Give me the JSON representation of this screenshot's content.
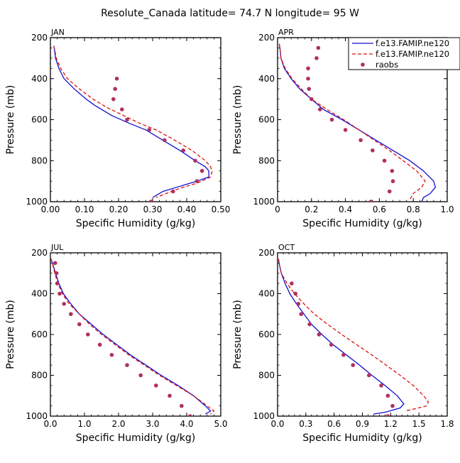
{
  "page_title": "Resolute_Canada   latitude= 74.7 N longitude= 95 W",
  "legend": {
    "entries": [
      {
        "label": "f.e13.FAMIP.ne120",
        "style": "solid",
        "color": "#1010d0"
      },
      {
        "label": "f.e13.FAMIP.ne120",
        "style": "dashed",
        "color": "#e01010"
      },
      {
        "label": "raobs",
        "style": "dot",
        "color": "#b03060"
      }
    ]
  },
  "colors": {
    "model_solid": "#1010d0",
    "model_dashed": "#e01010",
    "obs": "#b03060"
  },
  "chart_data": [
    {
      "type": "line",
      "panel": "JAN",
      "xlabel": "Specific Humidity (g/kg)",
      "ylabel": "Pressure (mb)",
      "xlim": [
        0,
        0.5
      ],
      "xticks": [
        0,
        0.1,
        0.2,
        0.3,
        0.4,
        0.5
      ],
      "xticklabels": [
        "0.00",
        "0.10",
        "0.20",
        "0.30",
        "0.40",
        "0.50"
      ],
      "ylim": [
        200,
        1000
      ],
      "yticks": [
        200,
        400,
        600,
        800,
        1000
      ],
      "yticklabels": [
        "200",
        "400",
        "600",
        "800",
        "1000"
      ],
      "y_reversed": true,
      "series": [
        {
          "style": "solid",
          "points": [
            [
              0.01,
              240
            ],
            [
              0.012,
              260
            ],
            [
              0.015,
              300
            ],
            [
              0.025,
              350
            ],
            [
              0.04,
              400
            ],
            [
              0.07,
              450
            ],
            [
              0.105,
              500
            ],
            [
              0.13,
              530
            ],
            [
              0.18,
              580
            ],
            [
              0.235,
              620
            ],
            [
              0.28,
              650
            ],
            [
              0.33,
              700
            ],
            [
              0.38,
              750
            ],
            [
              0.425,
              800
            ],
            [
              0.455,
              830
            ],
            [
              0.465,
              850
            ],
            [
              0.465,
              880
            ],
            [
              0.43,
              900
            ],
            [
              0.39,
              920
            ],
            [
              0.33,
              950
            ],
            [
              0.3,
              980
            ]
          ]
        },
        {
          "style": "dashed",
          "points": [
            [
              0.01,
              240
            ],
            [
              0.013,
              260
            ],
            [
              0.017,
              300
            ],
            [
              0.03,
              350
            ],
            [
              0.05,
              400
            ],
            [
              0.085,
              450
            ],
            [
              0.125,
              500
            ],
            [
              0.165,
              540
            ],
            [
              0.215,
              580
            ],
            [
              0.265,
              620
            ],
            [
              0.31,
              650
            ],
            [
              0.365,
              700
            ],
            [
              0.415,
              750
            ],
            [
              0.455,
              800
            ],
            [
              0.47,
              830
            ],
            [
              0.475,
              850
            ],
            [
              0.47,
              880
            ],
            [
              0.43,
              910
            ],
            [
              0.38,
              935
            ],
            [
              0.34,
              960
            ],
            [
              0.31,
              980
            ]
          ]
        },
        {
          "style": "dot",
          "points": [
            [
              0.195,
              400
            ],
            [
              0.19,
              450
            ],
            [
              0.185,
              500
            ],
            [
              0.21,
              550
            ],
            [
              0.225,
              600
            ],
            [
              0.29,
              650
            ],
            [
              0.335,
              700
            ],
            [
              0.39,
              750
            ],
            [
              0.425,
              800
            ],
            [
              0.445,
              850
            ],
            [
              0.43,
              900
            ],
            [
              0.36,
              950
            ],
            [
              0.295,
              1000
            ]
          ]
        }
      ]
    },
    {
      "type": "line",
      "panel": "APR",
      "xlabel": "Specific Humidity (g/kg)",
      "ylabel": "Pressure (mb)",
      "xlim": [
        0,
        1.0
      ],
      "xticks": [
        0,
        0.2,
        0.4,
        0.6,
        0.8,
        1.0
      ],
      "xticklabels": [
        "0",
        "0.2",
        "0.4",
        "0.6",
        "0.8",
        "1.0"
      ],
      "ylim": [
        200,
        1000
      ],
      "yticks": [
        200,
        400,
        600,
        800,
        1000
      ],
      "yticklabels": [
        "200",
        "400",
        "600",
        "800",
        "1000"
      ],
      "y_reversed": true,
      "series": [
        {
          "style": "solid",
          "points": [
            [
              0.01,
              230
            ],
            [
              0.015,
              260
            ],
            [
              0.02,
              300
            ],
            [
              0.04,
              350
            ],
            [
              0.08,
              400
            ],
            [
              0.13,
              450
            ],
            [
              0.2,
              500
            ],
            [
              0.27,
              550
            ],
            [
              0.38,
              600
            ],
            [
              0.48,
              650
            ],
            [
              0.58,
              700
            ],
            [
              0.68,
              750
            ],
            [
              0.78,
              800
            ],
            [
              0.86,
              850
            ],
            [
              0.92,
              900
            ],
            [
              0.93,
              930
            ],
            [
              0.9,
              960
            ],
            [
              0.86,
              980
            ],
            [
              0.85,
              1000
            ]
          ]
        },
        {
          "style": "dashed",
          "points": [
            [
              0.01,
              230
            ],
            [
              0.015,
              260
            ],
            [
              0.02,
              300
            ],
            [
              0.045,
              350
            ],
            [
              0.085,
              400
            ],
            [
              0.14,
              450
            ],
            [
              0.2,
              500
            ],
            [
              0.29,
              550
            ],
            [
              0.39,
              600
            ],
            [
              0.48,
              650
            ],
            [
              0.57,
              700
            ],
            [
              0.66,
              750
            ],
            [
              0.74,
              800
            ],
            [
              0.82,
              850
            ],
            [
              0.87,
              900
            ],
            [
              0.85,
              930
            ],
            [
              0.8,
              960
            ],
            [
              0.78,
              990
            ]
          ]
        },
        {
          "style": "dot",
          "points": [
            [
              0.24,
              250
            ],
            [
              0.23,
              300
            ],
            [
              0.18,
              350
            ],
            [
              0.18,
              400
            ],
            [
              0.185,
              450
            ],
            [
              0.2,
              500
            ],
            [
              0.25,
              550
            ],
            [
              0.32,
              600
            ],
            [
              0.4,
              650
            ],
            [
              0.49,
              700
            ],
            [
              0.56,
              750
            ],
            [
              0.63,
              800
            ],
            [
              0.675,
              850
            ],
            [
              0.68,
              900
            ],
            [
              0.66,
              950
            ],
            [
              0.55,
              1000
            ]
          ]
        }
      ]
    },
    {
      "type": "line",
      "panel": "JUL",
      "xlabel": "Specific Humidity (g/kg)",
      "ylabel": "Pressure (mb)",
      "xlim": [
        0,
        5.0
      ],
      "xticks": [
        0,
        1,
        2,
        3,
        4,
        5
      ],
      "xticklabels": [
        "0.0",
        "1.0",
        "2.0",
        "3.0",
        "4.0",
        "5.0"
      ],
      "ylim": [
        200,
        1000
      ],
      "yticks": [
        200,
        400,
        600,
        800,
        1000
      ],
      "yticklabels": [
        "200",
        "400",
        "600",
        "800",
        "1000"
      ],
      "y_reversed": true,
      "series": [
        {
          "style": "solid",
          "points": [
            [
              0.02,
              230
            ],
            [
              0.08,
              260
            ],
            [
              0.15,
              300
            ],
            [
              0.25,
              350
            ],
            [
              0.38,
              400
            ],
            [
              0.6,
              450
            ],
            [
              0.85,
              500
            ],
            [
              1.2,
              550
            ],
            [
              1.55,
              600
            ],
            [
              1.95,
              650
            ],
            [
              2.35,
              700
            ],
            [
              2.8,
              750
            ],
            [
              3.25,
              800
            ],
            [
              3.75,
              850
            ],
            [
              4.2,
              900
            ],
            [
              4.55,
              950
            ],
            [
              4.7,
              975
            ],
            [
              4.55,
              990
            ]
          ]
        },
        {
          "style": "dashed",
          "points": [
            [
              0.02,
              230
            ],
            [
              0.07,
              260
            ],
            [
              0.13,
              300
            ],
            [
              0.22,
              350
            ],
            [
              0.35,
              400
            ],
            [
              0.55,
              450
            ],
            [
              0.85,
              500
            ],
            [
              1.15,
              550
            ],
            [
              1.5,
              600
            ],
            [
              1.9,
              650
            ],
            [
              2.3,
              700
            ],
            [
              2.75,
              750
            ],
            [
              3.2,
              800
            ],
            [
              3.7,
              850
            ],
            [
              4.2,
              900
            ],
            [
              4.6,
              950
            ],
            [
              4.8,
              975
            ],
            [
              4.7,
              990
            ]
          ]
        },
        {
          "style": "dot",
          "points": [
            [
              0.14,
              250
            ],
            [
              0.18,
              300
            ],
            [
              0.2,
              350
            ],
            [
              0.27,
              400
            ],
            [
              0.4,
              450
            ],
            [
              0.6,
              500
            ],
            [
              0.85,
              550
            ],
            [
              1.1,
              600
            ],
            [
              1.45,
              650
            ],
            [
              1.8,
              700
            ],
            [
              2.25,
              750
            ],
            [
              2.65,
              800
            ],
            [
              3.1,
              850
            ],
            [
              3.5,
              900
            ],
            [
              3.85,
              950
            ],
            [
              4.1,
              1000
            ]
          ]
        }
      ]
    },
    {
      "type": "line",
      "panel": "OCT",
      "xlabel": "Specific Humidity (g/kg)",
      "ylabel": "Pressure (mb)",
      "xlim": [
        0,
        1.8
      ],
      "xticks": [
        0,
        0.3,
        0.6,
        0.9,
        1.2,
        1.5,
        1.8
      ],
      "xticklabels": [
        "0.0",
        "0.3",
        "0.6",
        "0.9",
        "1.2",
        "1.5",
        "1.8"
      ],
      "ylim": [
        200,
        1000
      ],
      "yticks": [
        200,
        400,
        600,
        800,
        1000
      ],
      "yticklabels": [
        "200",
        "400",
        "600",
        "800",
        "1000"
      ],
      "y_reversed": true,
      "series": [
        {
          "style": "solid",
          "points": [
            [
              0.01,
              230
            ],
            [
              0.02,
              260
            ],
            [
              0.04,
              300
            ],
            [
              0.08,
              350
            ],
            [
              0.13,
              400
            ],
            [
              0.2,
              450
            ],
            [
              0.28,
              500
            ],
            [
              0.36,
              550
            ],
            [
              0.47,
              600
            ],
            [
              0.59,
              650
            ],
            [
              0.73,
              700
            ],
            [
              0.87,
              750
            ],
            [
              1.0,
              800
            ],
            [
              1.14,
              850
            ],
            [
              1.27,
              900
            ],
            [
              1.34,
              940
            ],
            [
              1.3,
              960
            ],
            [
              1.15,
              980
            ],
            [
              1.02,
              990
            ]
          ]
        },
        {
          "style": "dashed",
          "points": [
            [
              0.01,
              230
            ],
            [
              0.02,
              260
            ],
            [
              0.04,
              300
            ],
            [
              0.1,
              350
            ],
            [
              0.18,
              400
            ],
            [
              0.28,
              450
            ],
            [
              0.39,
              500
            ],
            [
              0.53,
              550
            ],
            [
              0.68,
              600
            ],
            [
              0.84,
              650
            ],
            [
              1.0,
              700
            ],
            [
              1.15,
              750
            ],
            [
              1.3,
              800
            ],
            [
              1.44,
              850
            ],
            [
              1.55,
              900
            ],
            [
              1.6,
              930
            ],
            [
              1.58,
              950
            ],
            [
              1.45,
              965
            ],
            [
              1.35,
              975
            ]
          ]
        },
        {
          "style": "dot",
          "points": [
            [
              0.15,
              350
            ],
            [
              0.19,
              400
            ],
            [
              0.22,
              450
            ],
            [
              0.25,
              500
            ],
            [
              0.34,
              550
            ],
            [
              0.44,
              600
            ],
            [
              0.57,
              650
            ],
            [
              0.7,
              700
            ],
            [
              0.8,
              750
            ],
            [
              0.97,
              800
            ],
            [
              1.1,
              850
            ],
            [
              1.17,
              900
            ],
            [
              1.22,
              950
            ],
            [
              1.17,
              1000
            ]
          ]
        }
      ]
    }
  ]
}
